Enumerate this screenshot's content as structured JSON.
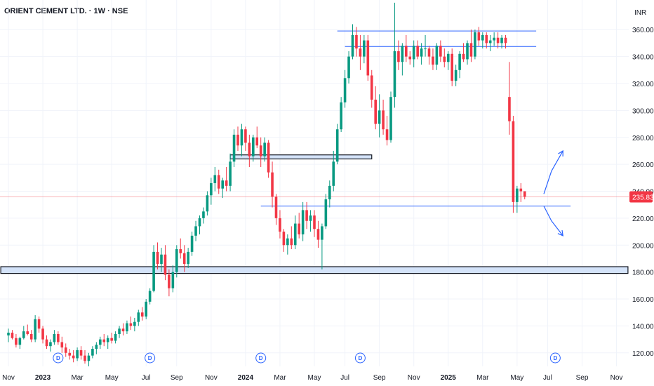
{
  "title": "ORIENT CEMENT LTD. · 1W · NSE",
  "currency": "INR",
  "chart_data": {
    "type": "candlestick",
    "interval": "1W",
    "exchange": "NSE",
    "ylim": [
      110,
      382
    ],
    "y_ticks": [
      120,
      140,
      160,
      180,
      200,
      220,
      240,
      260,
      280,
      300,
      320,
      340,
      360
    ],
    "y_tick_labels": [
      "120.00",
      "140.00",
      "160.00",
      "180.00",
      "200.00",
      "220.00",
      "240.00",
      "260.00",
      "280.00",
      "300.00",
      "320.00",
      "340.00",
      "360.00"
    ],
    "x_tick_labels": [
      {
        "label": "Nov",
        "idx": 0,
        "bold": false
      },
      {
        "label": "2023",
        "idx": 9,
        "bold": true
      },
      {
        "label": "Mar",
        "idx": 18,
        "bold": false
      },
      {
        "label": "May",
        "idx": 27,
        "bold": false
      },
      {
        "label": "Jul",
        "idx": 36,
        "bold": false
      },
      {
        "label": "Sep",
        "idx": 44,
        "bold": false
      },
      {
        "label": "Nov",
        "idx": 53,
        "bold": false
      },
      {
        "label": "2024",
        "idx": 62,
        "bold": true
      },
      {
        "label": "Mar",
        "idx": 71,
        "bold": false
      },
      {
        "label": "May",
        "idx": 80,
        "bold": false
      },
      {
        "label": "Jul",
        "idx": 88,
        "bold": false
      },
      {
        "label": "Sep",
        "idx": 97,
        "bold": false
      },
      {
        "label": "Nov",
        "idx": 106,
        "bold": false
      },
      {
        "label": "2025",
        "idx": 115,
        "bold": true
      },
      {
        "label": "Mar",
        "idx": 124,
        "bold": false
      },
      {
        "label": "May",
        "idx": 133,
        "bold": false
      },
      {
        "label": "Jul",
        "idx": 141,
        "bold": false
      },
      {
        "label": "Sep",
        "idx": 150,
        "bold": false
      },
      {
        "label": "Nov",
        "idx": 159,
        "bold": false
      }
    ],
    "dividend_markers": [
      {
        "idx": 13,
        "label": "D"
      },
      {
        "idx": 37,
        "label": "D"
      },
      {
        "idx": 66,
        "label": "D"
      },
      {
        "idx": 92,
        "label": "D"
      },
      {
        "idx": 143,
        "label": "D"
      }
    ],
    "last_price": 235.83,
    "last_price_label": "235.83",
    "candles": [
      [
        133,
        138,
        128,
        135
      ],
      [
        135,
        137,
        130,
        131
      ],
      [
        131,
        134,
        124,
        126
      ],
      [
        126,
        132,
        123,
        131
      ],
      [
        131,
        140,
        130,
        136
      ],
      [
        136,
        141,
        133,
        134
      ],
      [
        134,
        137,
        128,
        130
      ],
      [
        130,
        148,
        128,
        145
      ],
      [
        145,
        147,
        135,
        138
      ],
      [
        138,
        140,
        127,
        130
      ],
      [
        130,
        133,
        123,
        125
      ],
      [
        125,
        130,
        121,
        128
      ],
      [
        128,
        137,
        126,
        134
      ],
      [
        134,
        136,
        126,
        128
      ],
      [
        128,
        132,
        120,
        124
      ],
      [
        124,
        127,
        117,
        120
      ],
      [
        120,
        123,
        115,
        118
      ],
      [
        118,
        122,
        113,
        116
      ],
      [
        116,
        124,
        114,
        122
      ],
      [
        122,
        125,
        115,
        118
      ],
      [
        118,
        122,
        112,
        114
      ],
      [
        114,
        120,
        110,
        118
      ],
      [
        118,
        125,
        116,
        123
      ],
      [
        123,
        128,
        119,
        126
      ],
      [
        126,
        132,
        123,
        130
      ],
      [
        130,
        134,
        125,
        128
      ],
      [
        128,
        133,
        123,
        131
      ],
      [
        131,
        135,
        127,
        129
      ],
      [
        129,
        136,
        127,
        134
      ],
      [
        134,
        140,
        131,
        138
      ],
      [
        138,
        142,
        133,
        136
      ],
      [
        136,
        144,
        134,
        142
      ],
      [
        142,
        147,
        137,
        140
      ],
      [
        140,
        146,
        136,
        143
      ],
      [
        143,
        152,
        140,
        150
      ],
      [
        150,
        154,
        144,
        147
      ],
      [
        147,
        160,
        145,
        158
      ],
      [
        158,
        168,
        156,
        166
      ],
      [
        166,
        200,
        165,
        195
      ],
      [
        195,
        202,
        182,
        186
      ],
      [
        186,
        198,
        180,
        193
      ],
      [
        193,
        200,
        174,
        178
      ],
      [
        178,
        182,
        162,
        168
      ],
      [
        168,
        185,
        165,
        180
      ],
      [
        180,
        200,
        176,
        197
      ],
      [
        197,
        205,
        190,
        194
      ],
      [
        194,
        200,
        180,
        186
      ],
      [
        186,
        198,
        183,
        195
      ],
      [
        195,
        210,
        192,
        207
      ],
      [
        207,
        218,
        203,
        214
      ],
      [
        214,
        222,
        208,
        220
      ],
      [
        220,
        228,
        216,
        225
      ],
      [
        225,
        240,
        222,
        237
      ],
      [
        237,
        250,
        230,
        246
      ],
      [
        246,
        258,
        240,
        252
      ],
      [
        252,
        256,
        238,
        242
      ],
      [
        242,
        250,
        235,
        248
      ],
      [
        248,
        258,
        240,
        244
      ],
      [
        244,
        268,
        240,
        262
      ],
      [
        262,
        286,
        258,
        282
      ],
      [
        282,
        288,
        270,
        274
      ],
      [
        274,
        290,
        266,
        286
      ],
      [
        286,
        288,
        270,
        276
      ],
      [
        276,
        282,
        258,
        266
      ],
      [
        266,
        282,
        262,
        280
      ],
      [
        280,
        288,
        272,
        274
      ],
      [
        274,
        280,
        258,
        266
      ],
      [
        266,
        280,
        262,
        276
      ],
      [
        276,
        278,
        250,
        254
      ],
      [
        254,
        262,
        228,
        236
      ],
      [
        236,
        238,
        215,
        220
      ],
      [
        220,
        226,
        205,
        210
      ],
      [
        210,
        212,
        195,
        200
      ],
      [
        200,
        208,
        193,
        205
      ],
      [
        205,
        214,
        197,
        200
      ],
      [
        200,
        222,
        197,
        216
      ],
      [
        216,
        224,
        205,
        208
      ],
      [
        208,
        232,
        203,
        226
      ],
      [
        226,
        232,
        212,
        218
      ],
      [
        218,
        226,
        210,
        222
      ],
      [
        222,
        226,
        206,
        212
      ],
      [
        212,
        218,
        198,
        204
      ],
      [
        204,
        216,
        182,
        214
      ],
      [
        214,
        238,
        212,
        234
      ],
      [
        234,
        248,
        228,
        244
      ],
      [
        244,
        270,
        240,
        262
      ],
      [
        262,
        290,
        260,
        286
      ],
      [
        286,
        310,
        284,
        306
      ],
      [
        306,
        330,
        302,
        324
      ],
      [
        324,
        344,
        320,
        340
      ],
      [
        340,
        364,
        338,
        356
      ],
      [
        356,
        362,
        340,
        346
      ],
      [
        346,
        356,
        330,
        340
      ],
      [
        340,
        356,
        335,
        352
      ],
      [
        352,
        356,
        322,
        326
      ],
      [
        326,
        330,
        302,
        308
      ],
      [
        308,
        318,
        286,
        290
      ],
      [
        290,
        312,
        280,
        300
      ],
      [
        300,
        308,
        282,
        286
      ],
      [
        286,
        296,
        274,
        278
      ],
      [
        278,
        314,
        276,
        310
      ],
      [
        310,
        380,
        302,
        344
      ],
      [
        344,
        352,
        330,
        336
      ],
      [
        336,
        350,
        326,
        348
      ],
      [
        348,
        356,
        336,
        340
      ],
      [
        340,
        344,
        334,
        338
      ],
      [
        338,
        352,
        332,
        348
      ],
      [
        348,
        352,
        338,
        340
      ],
      [
        340,
        350,
        334,
        346
      ],
      [
        346,
        356,
        340,
        346
      ],
      [
        346,
        348,
        334,
        340
      ],
      [
        340,
        346,
        330,
        334
      ],
      [
        334,
        350,
        330,
        348
      ],
      [
        348,
        352,
        336,
        340
      ],
      [
        340,
        346,
        332,
        336
      ],
      [
        336,
        344,
        330,
        342
      ],
      [
        342,
        346,
        318,
        322
      ],
      [
        322,
        334,
        318,
        330
      ],
      [
        330,
        344,
        324,
        342
      ],
      [
        342,
        350,
        336,
        338
      ],
      [
        338,
        352,
        334,
        350
      ],
      [
        350,
        360,
        336,
        340
      ],
      [
        340,
        360,
        338,
        358
      ],
      [
        358,
        362,
        348,
        352
      ],
      [
        352,
        358,
        346,
        356
      ],
      [
        356,
        358,
        346,
        350
      ],
      [
        350,
        356,
        344,
        352
      ],
      [
        352,
        358,
        348,
        354
      ],
      [
        354,
        358,
        346,
        350
      ],
      [
        350,
        356,
        346,
        354
      ],
      [
        354,
        356,
        346,
        350
      ],
      [
        310,
        336,
        282,
        292
      ],
      [
        292,
        296,
        224,
        232
      ],
      [
        232,
        244,
        224,
        242
      ],
      [
        242,
        246,
        232,
        240
      ],
      [
        240,
        240,
        234,
        236
      ]
    ],
    "h_lines": [
      {
        "value": 359,
        "x_from": 86,
        "x_to": 138
      },
      {
        "value": 347.5,
        "x_from": 88,
        "x_to": 138
      },
      {
        "value": 229,
        "x_from": 66,
        "x_to": 147
      }
    ],
    "zones": [
      {
        "y_low": 179,
        "y_high": 184,
        "x_from": -2,
        "x_to": 162
      },
      {
        "y_low": 264,
        "y_high": 267,
        "x_from": 58,
        "x_to": 95
      }
    ],
    "arrows": [
      {
        "path": [
          [
            140,
            238
          ],
          [
            142,
            255
          ],
          [
            145,
            270
          ]
        ],
        "direction": "up"
      },
      {
        "path": [
          [
            140,
            229
          ],
          [
            142,
            218
          ],
          [
            145,
            207
          ]
        ],
        "direction": "down"
      }
    ]
  },
  "colors": {
    "up": "#089981",
    "down": "#f23645",
    "level_line": "#2962ff",
    "zone_fill": "#d4e3f9",
    "zone_border": "#131722",
    "grid": "#f0f3fa",
    "axis_text": "#131722",
    "price_line": "#f23645"
  }
}
